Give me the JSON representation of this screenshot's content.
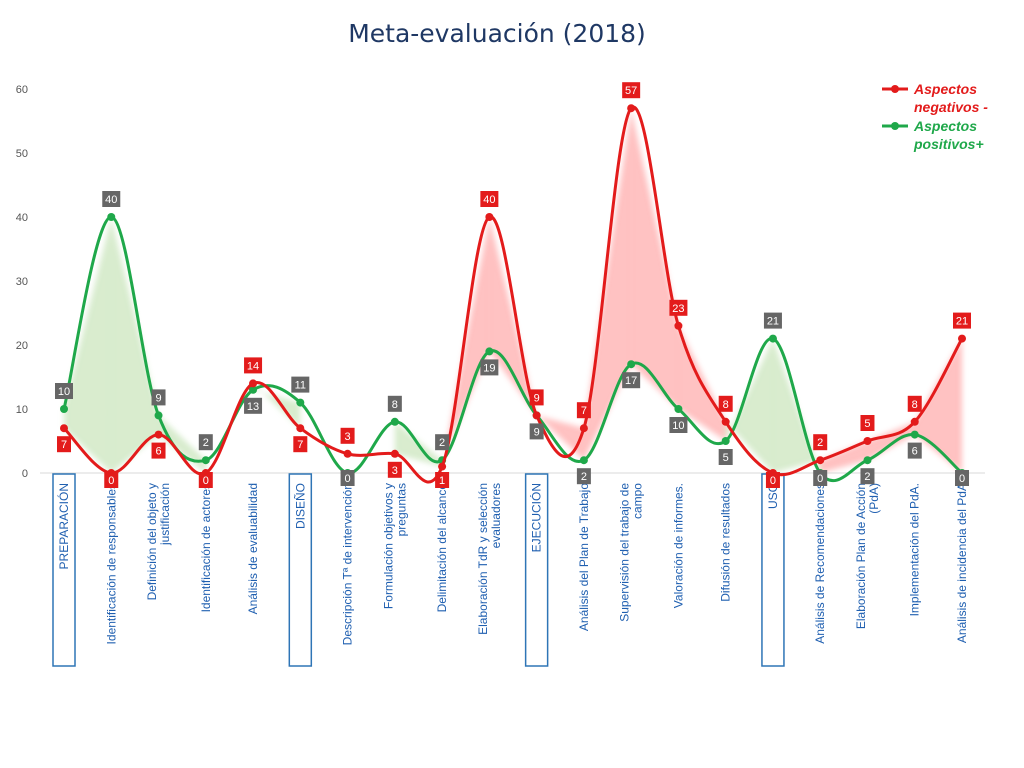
{
  "chart_data": {
    "type": "line",
    "title": "Meta-evaluación (2018)",
    "ylim": [
      0,
      60
    ],
    "yticks": [
      0,
      10,
      20,
      30,
      40,
      50,
      60
    ],
    "categories": [
      "PREPARACIÓN",
      "Identificación de responsables",
      "Definición del objeto y justificación",
      "Identificación de actores",
      "Análisis de evaluabilidad",
      "DISEÑO",
      "Descripción Tª de intervención",
      "Formulación objetivos y preguntas",
      "Delimitación del alcance",
      "Elaboración TdR y selección evaluadores",
      "EJECUCIÓN",
      "Análisis del Plan de Trabajo",
      "Supervisión del trabajo de campo",
      "Valoración de informes.",
      "Difusión de resultados",
      "USO",
      "Análisis de Recomendaciones",
      "Elaboración Plan de Acción (PdA)",
      "Implementación del PdA.",
      "Análisis de incidencia del PdA"
    ],
    "phase_categories": [
      "PREPARACIÓN",
      "DISEÑO",
      "EJECUCIÓN",
      "USO"
    ],
    "series": [
      {
        "name": "Aspectos negativos -",
        "color": "#e31b1b",
        "label_bg": "#e31b1b",
        "values": [
          7,
          0,
          6,
          0,
          14,
          7,
          3,
          3,
          1,
          40,
          9,
          7,
          57,
          23,
          8,
          0,
          2,
          5,
          8,
          21
        ]
      },
      {
        "name": "Aspectos positivos+",
        "color": "#1fa84a",
        "label_bg": "#666666",
        "values": [
          10,
          40,
          9,
          2,
          13,
          11,
          0,
          8,
          2,
          19,
          9,
          2,
          17,
          10,
          5,
          21,
          0,
          2,
          6,
          0
        ]
      }
    ],
    "legend": "top-right",
    "grid": false
  }
}
